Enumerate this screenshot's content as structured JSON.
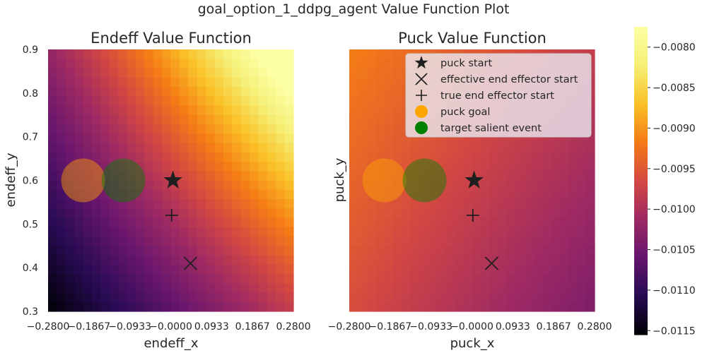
{
  "figure": {
    "suptitle": "goal_option_1_ddpg_agent Value Function Plot"
  },
  "chart_data": [
    {
      "type": "heatmap",
      "panel": "left",
      "title": "Endeff Value Function",
      "xlabel": "endeff_x",
      "ylabel": "endeff_y",
      "xlim": [
        -0.28,
        0.28
      ],
      "ylim": [
        0.3,
        0.9
      ],
      "xticks": [
        "−0.2800",
        "−0.1867",
        "−0.0933",
        "−0.0000",
        "0.0933",
        "0.1867",
        "0.2800"
      ],
      "yticks": [
        "0.3",
        "0.4",
        "0.5",
        "0.6",
        "0.7",
        "0.8",
        "0.9"
      ],
      "grid": "28x28",
      "value_range": [
        -0.01155,
        -0.00775
      ],
      "value_model": {
        "min_corner": "bottom-left",
        "max_corner": "top-right",
        "corner_values": [
          -0.01155,
          -0.0098,
          -0.0102,
          -0.00775
        ]
      },
      "markers": [
        {
          "kind": "puck start",
          "x": 0.005,
          "y": 0.6
        },
        {
          "kind": "effective end effector start",
          "x": 0.045,
          "y": 0.41
        },
        {
          "kind": "true end effector start",
          "x": 0.002,
          "y": 0.52
        },
        {
          "kind": "puck goal",
          "x": -0.2,
          "y": 0.6
        },
        {
          "kind": "target salient event",
          "x": -0.108,
          "y": 0.6
        }
      ]
    },
    {
      "type": "heatmap",
      "panel": "right",
      "title": "Puck Value Function",
      "xlabel": "puck_x",
      "ylabel": "puck_y",
      "xlim": [
        -0.28,
        0.28
      ],
      "ylim": [
        0.3,
        0.9
      ],
      "xticks": [
        "−0.2800",
        "−0.1867",
        "−0.0933",
        "−0.0000",
        "0.0933",
        "0.1867",
        "0.2800"
      ],
      "grid": "28x28",
      "value_range": [
        -0.0104,
        -0.00915
      ],
      "value_model": {
        "min_corner": "bottom-right",
        "max_corner": "top-left",
        "corner_values": [
          -0.0096,
          -0.0104,
          -0.00915,
          -0.0098
        ]
      },
      "markers": [
        {
          "kind": "puck start",
          "x": 0.005,
          "y": 0.6
        },
        {
          "kind": "effective end effector start",
          "x": 0.045,
          "y": 0.41
        },
        {
          "kind": "true end effector start",
          "x": 0.002,
          "y": 0.52
        },
        {
          "kind": "puck goal",
          "x": -0.2,
          "y": 0.6
        },
        {
          "kind": "target salient event",
          "x": -0.108,
          "y": 0.6
        }
      ]
    }
  ],
  "legend": {
    "placement": "top-right of right panel",
    "items": [
      {
        "label": "puck start",
        "symbol": "star"
      },
      {
        "label": "effective end effector start",
        "symbol": "x"
      },
      {
        "label": "true end effector start",
        "symbol": "plus"
      },
      {
        "label": "puck goal",
        "symbol": "circle-orange"
      },
      {
        "label": "target salient event",
        "symbol": "circle-green"
      }
    ]
  },
  "colorbar": {
    "colormap": "inferno",
    "range": [
      -0.01155,
      -0.00775
    ],
    "ticks": [
      -0.008,
      -0.0085,
      -0.009,
      -0.0095,
      -0.01,
      -0.0105,
      -0.011,
      -0.0115
    ],
    "tick_labels": [
      "−0.0080",
      "−0.0085",
      "−0.0090",
      "−0.0095",
      "−0.0100",
      "−0.0105",
      "−0.0110",
      "−0.0115"
    ]
  },
  "colors": {
    "puck_goal": "#ffa500",
    "target_salient_event": "#008000",
    "marker": "#1f1f1f"
  }
}
